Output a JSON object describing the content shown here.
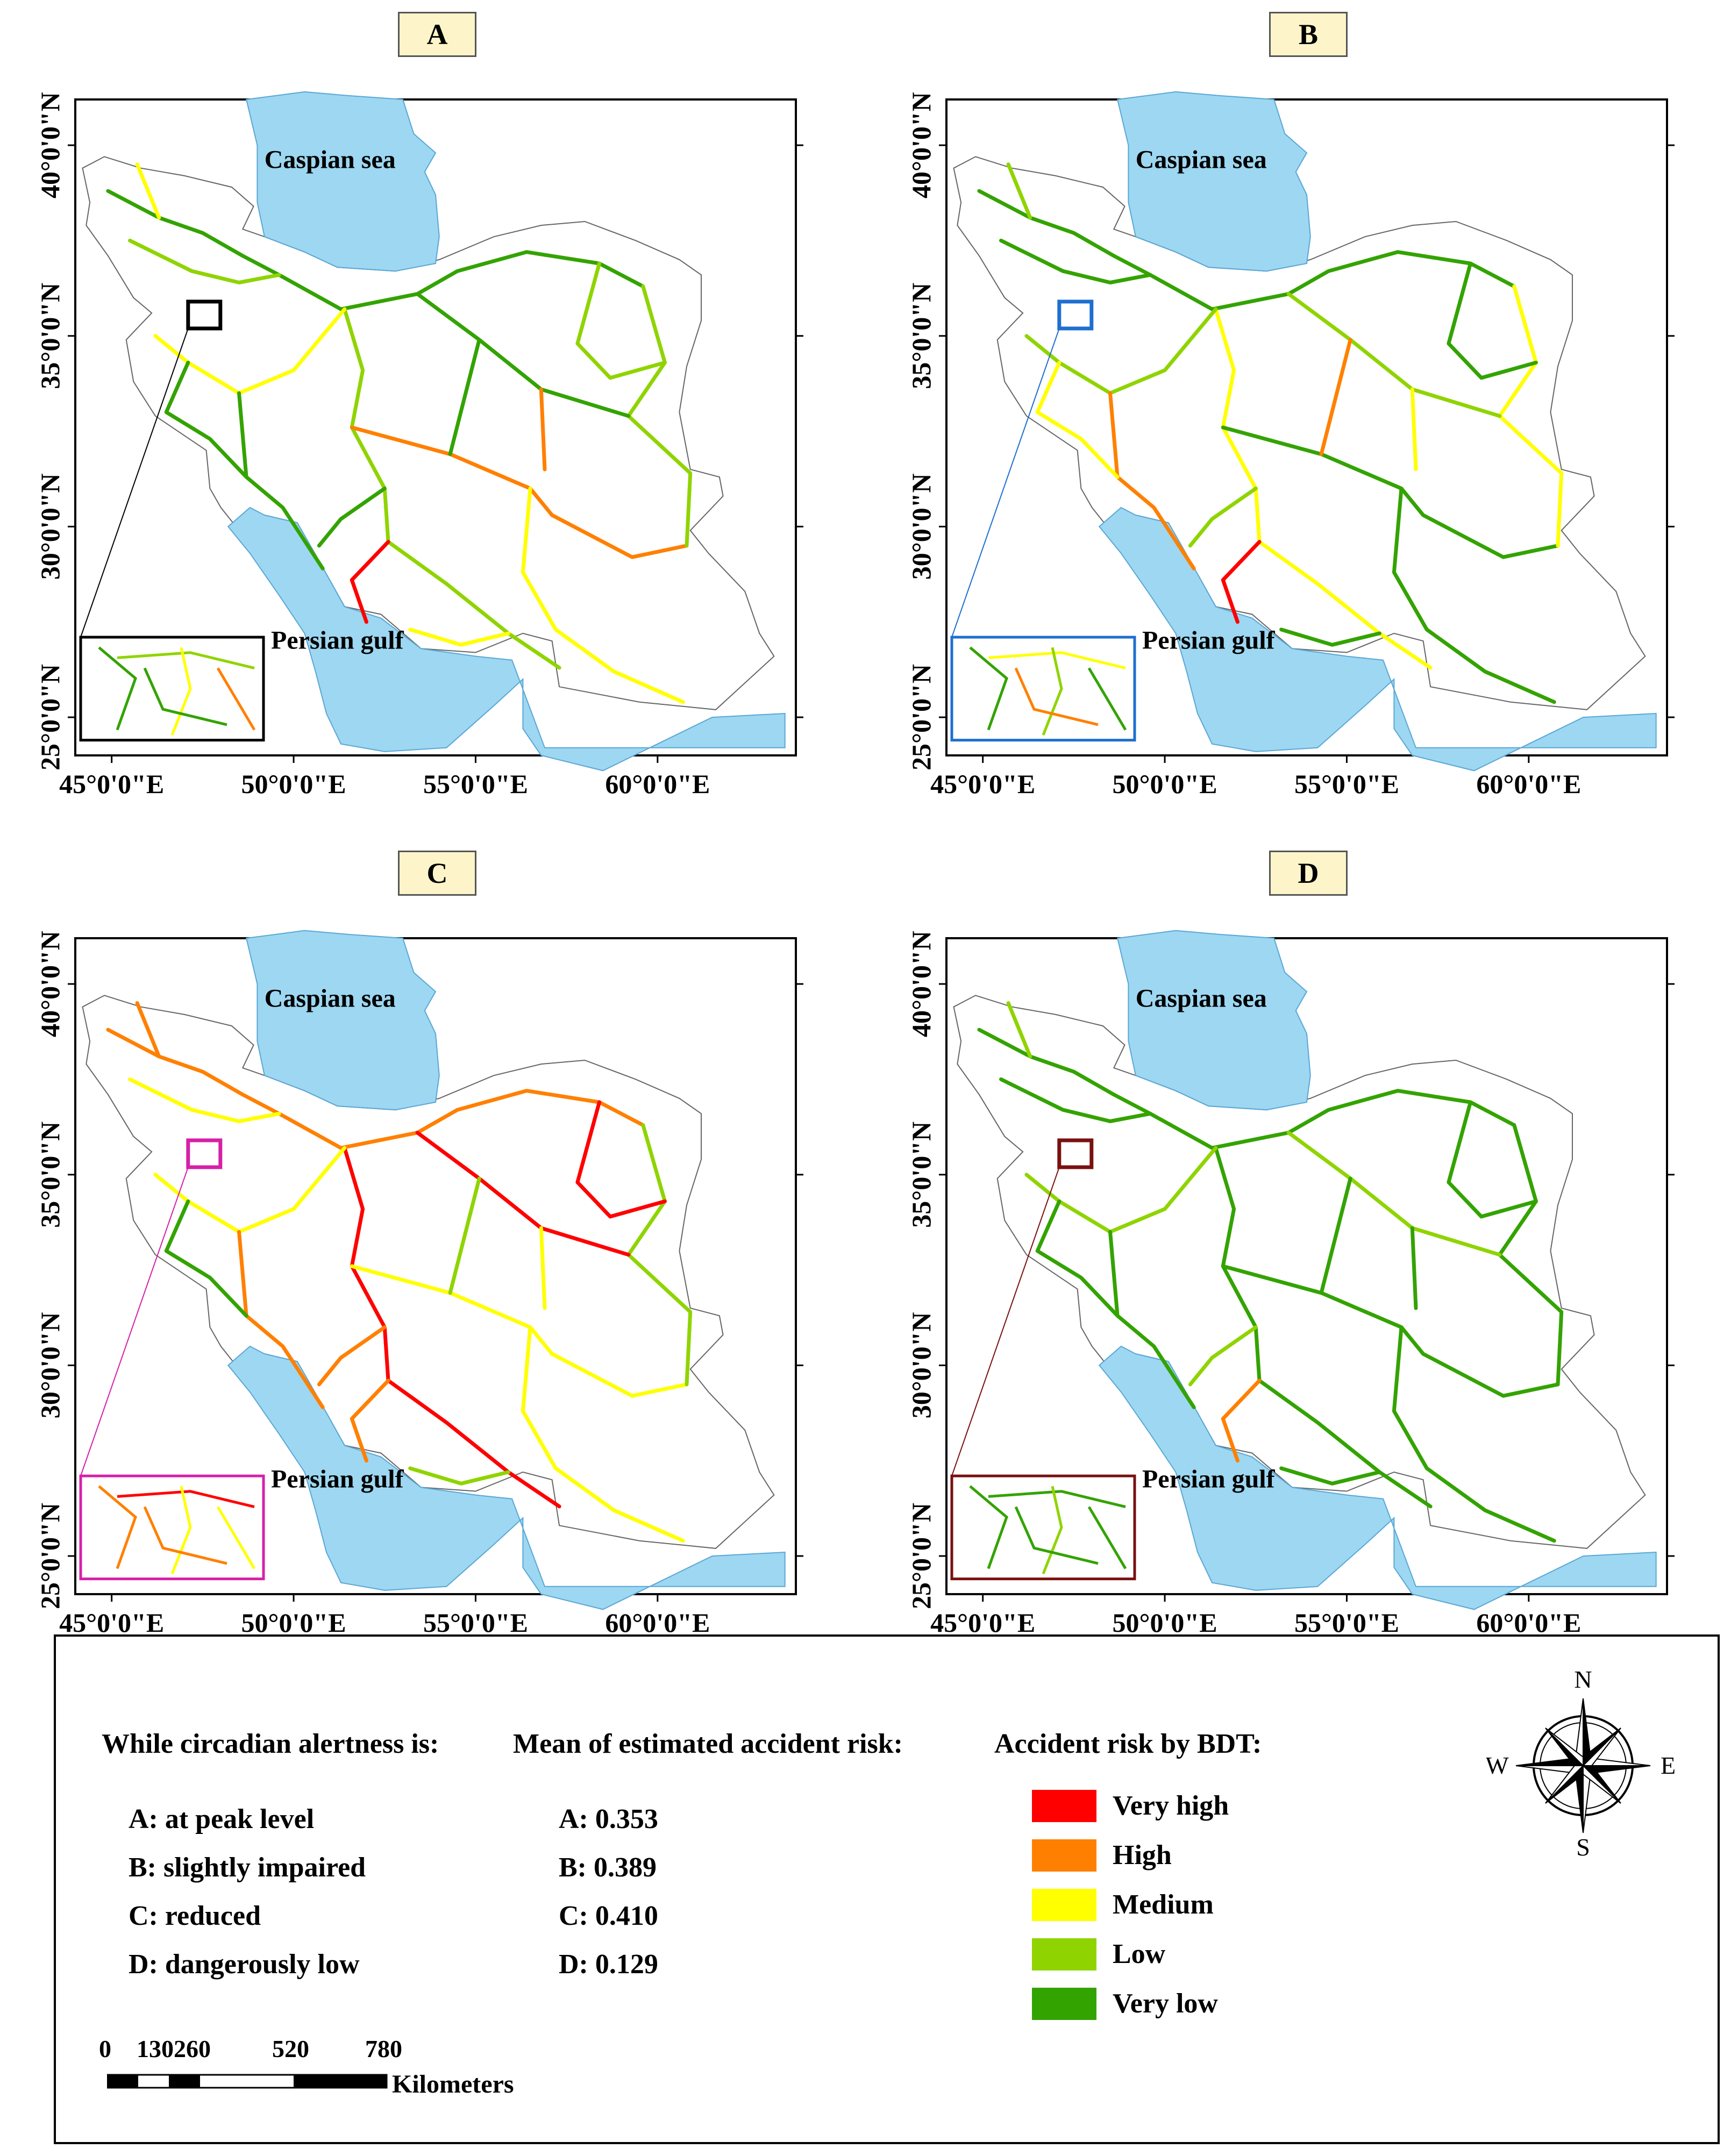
{
  "panels": [
    {
      "id": "A",
      "label": "A",
      "inset_color": "#000000"
    },
    {
      "id": "B",
      "label": "B",
      "inset_color": "#1e6fd0"
    },
    {
      "id": "C",
      "label": "C",
      "inset_color": "#d620a8"
    },
    {
      "id": "D",
      "label": "D",
      "inset_color": "#7a1010"
    }
  ],
  "axes": {
    "lat_ticks": [
      "40°0'0\"N",
      "35°0'0\"N",
      "30°0'0\"N",
      "25°0'0\"N"
    ],
    "lon_ticks": [
      "45°0'0\"E",
      "50°0'0\"E",
      "55°0'0\"E",
      "60°0'0\"E"
    ]
  },
  "map_labels": {
    "caspian": "Caspian sea",
    "persian": "Persian gulf"
  },
  "colors": {
    "water": "#9dd7f1",
    "very_high": "#ff0000",
    "high": "#ff8000",
    "medium": "#ffff00",
    "low": "#8fd400",
    "very_low": "#33a300"
  },
  "legend": {
    "alertness_title": "While circadian alertness is:",
    "alertness_items": [
      "A: at peak level",
      "B: slightly impaired",
      "C: reduced",
      "D: dangerously low"
    ],
    "mean_title": "Mean of estimated accident risk:",
    "mean_items": [
      "A: 0.353",
      "B: 0.389",
      "C: 0.410",
      "D: 0.129"
    ],
    "risk_title": "Accident risk by BDT:",
    "risk_items": [
      {
        "label": "Very high",
        "color": "#ff0000"
      },
      {
        "label": "High",
        "color": "#ff8000"
      },
      {
        "label": "Medium",
        "color": "#ffff00"
      },
      {
        "label": "Low",
        "color": "#8fd400"
      },
      {
        "label": "Very low",
        "color": "#33a300"
      }
    ],
    "scale_ticks": [
      "0",
      "130260",
      "520",
      "780"
    ],
    "scale_unit": "Kilometers",
    "compass": {
      "n": "N",
      "s": "S",
      "e": "E",
      "w": "W"
    }
  }
}
